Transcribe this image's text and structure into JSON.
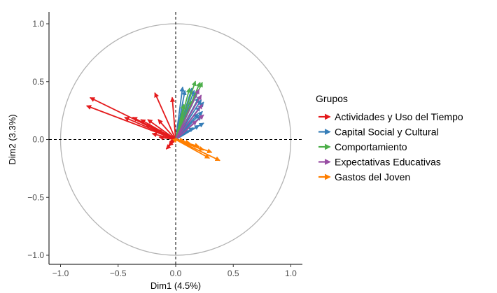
{
  "chart_data": {
    "type": "correlation-circle",
    "xlabel": "Dim1 (4.5%)",
    "ylabel": "Dim2 (3.3%)",
    "xlim": [
      -1.1,
      1.1
    ],
    "ylim": [
      -1.05,
      1.1
    ],
    "x_ticks": [
      -1.0,
      -0.5,
      0.0,
      0.5,
      1.0
    ],
    "x_tick_labels": [
      "−1.0",
      "−0.5",
      "0.0",
      "0.5",
      "1.0"
    ],
    "y_ticks": [
      -1.0,
      -0.5,
      0.0,
      0.5,
      1.0
    ],
    "y_tick_labels": [
      "−1.0",
      "−0.5",
      "0.0",
      "0.5",
      "1.0"
    ],
    "circle_radius": 1.0,
    "legend": {
      "title": "Grupos",
      "position": "right"
    },
    "series": [
      {
        "name": "Actividades y Uso del Tiempo",
        "color": "#E41A1C",
        "vectors": [
          [
            -0.74,
            0.36
          ],
          [
            -0.77,
            0.29
          ],
          [
            -0.44,
            0.19
          ],
          [
            -0.37,
            0.19
          ],
          [
            -0.3,
            0.17
          ],
          [
            -0.24,
            0.17
          ],
          [
            -0.15,
            0.17
          ],
          [
            -0.26,
            0.13
          ],
          [
            -0.16,
            0.08
          ],
          [
            -0.2,
            0.05
          ],
          [
            -0.14,
            0.02
          ],
          [
            -0.18,
            0.4
          ],
          [
            -0.03,
            0.36
          ],
          [
            -0.08,
            -0.08
          ],
          [
            -0.06,
            -0.05
          ],
          [
            -0.05,
            -0.02
          ]
        ]
      },
      {
        "name": "Capital Social y Cultural",
        "color": "#377EB8",
        "vectors": [
          [
            0.06,
            0.45
          ],
          [
            0.08,
            0.42
          ],
          [
            0.14,
            0.44
          ],
          [
            0.16,
            0.42
          ],
          [
            0.18,
            0.4
          ],
          [
            0.2,
            0.36
          ],
          [
            0.22,
            0.34
          ],
          [
            0.24,
            0.32
          ],
          [
            0.21,
            0.28
          ],
          [
            0.23,
            0.24
          ],
          [
            0.19,
            0.22
          ],
          [
            0.22,
            0.2
          ],
          [
            0.24,
            0.14
          ],
          [
            0.2,
            0.12
          ],
          [
            0.15,
            0.1
          ],
          [
            0.1,
            0.08
          ]
        ]
      },
      {
        "name": "Comportamiento",
        "color": "#4DAF4A",
        "vectors": [
          [
            0.17,
            0.5
          ],
          [
            0.21,
            0.49
          ],
          [
            0.23,
            0.49
          ],
          [
            0.12,
            0.44
          ],
          [
            0.07,
            0.3
          ],
          [
            0.14,
            0.33
          ],
          [
            0.06,
            0.2
          ]
        ]
      },
      {
        "name": "Expectativas Educativas",
        "color": "#984EA3",
        "vectors": [
          [
            0.2,
            0.43
          ],
          [
            0.22,
            0.38
          ],
          [
            0.23,
            0.3
          ],
          [
            0.24,
            0.21
          ],
          [
            0.18,
            0.16
          ]
        ]
      },
      {
        "name": "Gastos del Joven",
        "color": "#FF7F00",
        "vectors": [
          [
            0.38,
            -0.18
          ],
          [
            0.29,
            -0.16
          ],
          [
            0.31,
            -0.11
          ],
          [
            0.24,
            -0.09
          ],
          [
            0.2,
            -0.06
          ],
          [
            0.12,
            -0.03
          ],
          [
            0.07,
            -0.01
          ],
          [
            0.01,
            0.01
          ]
        ]
      }
    ]
  }
}
